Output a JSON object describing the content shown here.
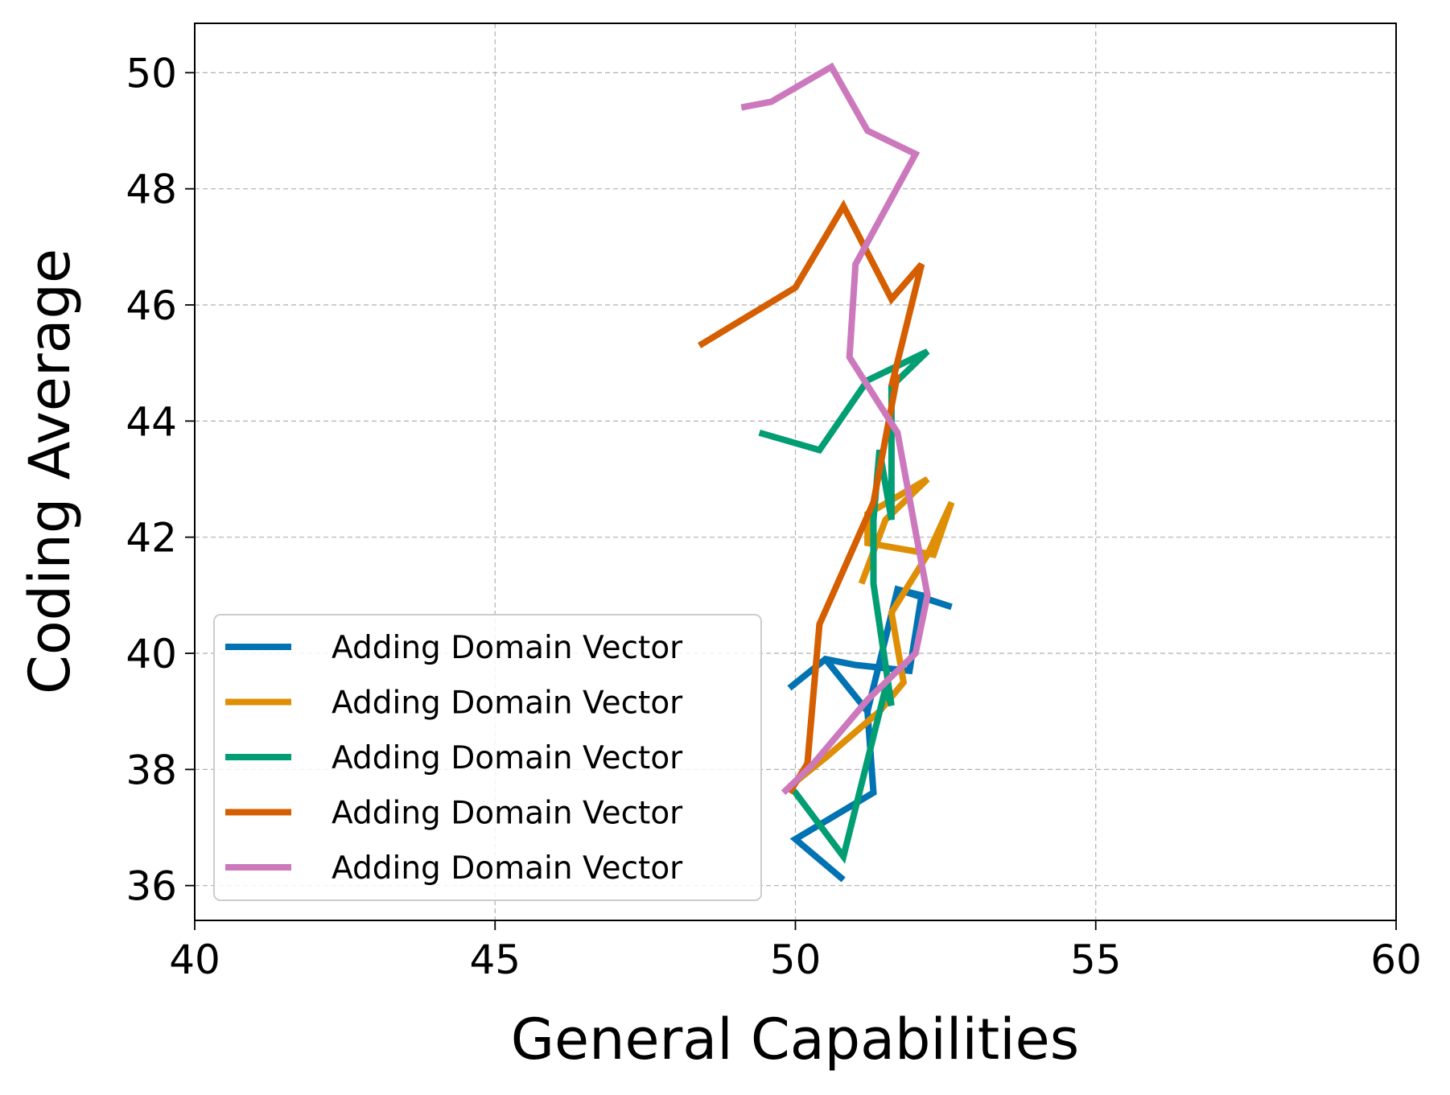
{
  "chart_data": {
    "type": "line",
    "xlabel": "General Capabilities",
    "ylabel": "Coding Average",
    "xlim": [
      40,
      60
    ],
    "ylim": [
      35.4,
      50.85
    ],
    "xticks": [
      40,
      45,
      50,
      55,
      60
    ],
    "yticks": [
      36,
      38,
      40,
      42,
      44,
      46,
      48,
      50
    ],
    "xtick_labels": [
      "40",
      "45",
      "50",
      "55",
      "60"
    ],
    "ytick_labels": [
      "36",
      "38",
      "40",
      "42",
      "44",
      "46",
      "48",
      "50"
    ],
    "grid": true,
    "legend_position": "lower-left",
    "series": [
      {
        "name": "Adding Domain Vector",
        "color": "#0173b2",
        "points": [
          [
            49.9,
            39.4
          ],
          [
            50.5,
            39.9
          ],
          [
            51.0,
            39.8
          ],
          [
            51.9,
            39.7
          ],
          [
            52.1,
            41.0
          ],
          [
            51.7,
            41.1
          ],
          [
            52.6,
            40.8
          ],
          [
            51.7,
            41.1
          ],
          [
            51.2,
            39.0
          ],
          [
            50.5,
            39.9
          ],
          [
            51.2,
            39.0
          ],
          [
            51.3,
            37.6
          ],
          [
            50.0,
            36.8
          ],
          [
            50.8,
            36.1
          ],
          [
            50.0,
            36.8
          ],
          [
            51.3,
            37.6
          ]
        ]
      },
      {
        "name": "Adding Domain Vector",
        "color": "#de8f05",
        "points": [
          [
            49.9,
            37.7
          ],
          [
            50.5,
            38.2
          ],
          [
            51.4,
            39.0
          ],
          [
            51.8,
            39.5
          ],
          [
            51.6,
            40.7
          ],
          [
            52.2,
            41.7
          ],
          [
            52.6,
            42.6
          ],
          [
            52.3,
            41.7
          ],
          [
            51.2,
            41.9
          ],
          [
            51.2,
            42.4
          ],
          [
            52.2,
            43.0
          ],
          [
            51.5,
            42.3
          ],
          [
            51.1,
            41.2
          ]
        ]
      },
      {
        "name": "Adding Domain Vector",
        "color": "#029e73",
        "points": [
          [
            49.4,
            43.8
          ],
          [
            50.4,
            43.5
          ],
          [
            51.2,
            44.7
          ],
          [
            52.2,
            45.2
          ],
          [
            51.6,
            44.6
          ],
          [
            51.6,
            42.3
          ],
          [
            51.4,
            43.5
          ],
          [
            51.3,
            42.3
          ],
          [
            51.3,
            41.2
          ],
          [
            51.6,
            39.1
          ],
          [
            51.5,
            39.4
          ],
          [
            50.8,
            36.5
          ],
          [
            50.0,
            37.6
          ],
          [
            49.9,
            37.7
          ]
        ]
      },
      {
        "name": "Adding Domain Vector",
        "color": "#d55e00",
        "points": [
          [
            48.4,
            45.3
          ],
          [
            50.0,
            46.3
          ],
          [
            50.8,
            47.7
          ],
          [
            51.6,
            46.1
          ],
          [
            52.1,
            46.7
          ],
          [
            51.6,
            44.6
          ],
          [
            51.7,
            44.8
          ],
          [
            51.3,
            42.6
          ],
          [
            50.4,
            40.5
          ],
          [
            50.2,
            38.1
          ],
          [
            49.9,
            37.6
          ]
        ]
      },
      {
        "name": "Adding Domain Vector",
        "color": "#cc78bc",
        "points": [
          [
            49.1,
            49.4
          ],
          [
            49.6,
            49.5
          ],
          [
            50.6,
            50.1
          ],
          [
            51.2,
            49.0
          ],
          [
            52.0,
            48.6
          ],
          [
            51.0,
            46.7
          ],
          [
            50.9,
            45.1
          ],
          [
            51.7,
            43.8
          ],
          [
            52.0,
            42.1
          ],
          [
            52.2,
            41.0
          ],
          [
            52.0,
            40.0
          ],
          [
            51.2,
            39.2
          ],
          [
            50.3,
            38.1
          ],
          [
            49.8,
            37.6
          ]
        ]
      }
    ]
  }
}
